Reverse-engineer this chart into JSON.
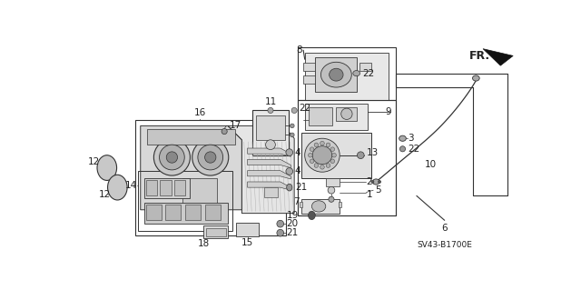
{
  "background_color": "#ffffff",
  "diagram_code": "SV43-B1700E",
  "fr_label": "FR.",
  "line_color": "#333333",
  "text_color": "#222222",
  "font_size": 7.5,
  "lw_main": 0.8,
  "lw_thin": 0.5
}
